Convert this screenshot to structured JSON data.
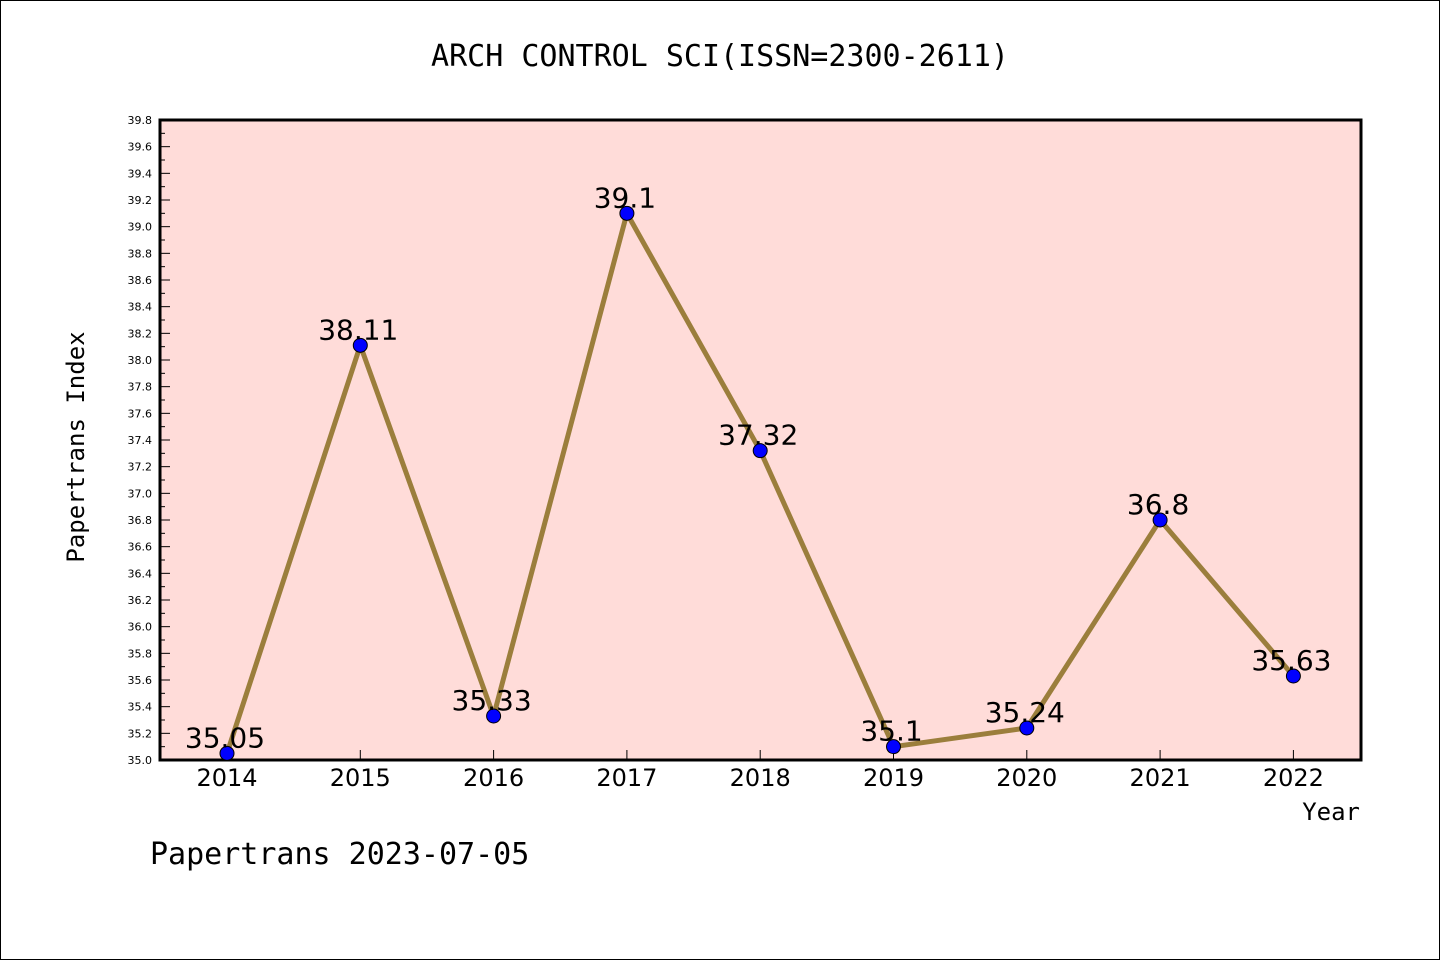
{
  "colors": {
    "plot_background": "#ffdcd9",
    "line": "#9b7e3c",
    "marker": "#0000ff",
    "axis": "#000000"
  },
  "chart_data": {
    "type": "line",
    "title": "ARCH CONTROL SCI(ISSN=2300-2611)",
    "xlabel": "Year",
    "ylabel": "Papertrans Index",
    "categories": [
      "2014",
      "2015",
      "2016",
      "2017",
      "2018",
      "2019",
      "2020",
      "2021",
      "2022"
    ],
    "series": [
      {
        "values": [
          35.05,
          38.11,
          35.33,
          39.1,
          37.32,
          35.1,
          35.24,
          36.8,
          35.63
        ],
        "labels": [
          "35.05",
          "38.11",
          "35.33",
          "39.1",
          "37.32",
          "35.1",
          "35.24",
          "36.8",
          "35.63"
        ]
      }
    ],
    "ylim": [
      35.0,
      39.8
    ],
    "ytick_step": 0.2,
    "ytick_labels": [
      "35.0",
      "35.2",
      "35.4",
      "35.6",
      "35.8",
      "36.0",
      "36.2",
      "36.4",
      "36.6",
      "36.8",
      "37.0",
      "37.2",
      "37.4",
      "37.6",
      "37.8",
      "38.0",
      "38.2",
      "38.4",
      "38.6",
      "38.8",
      "39.0",
      "39.2",
      "39.4",
      "39.6",
      "39.8"
    ],
    "grid": false,
    "legend": "none"
  },
  "footer": {
    "text": "Papertrans 2023-07-05"
  }
}
